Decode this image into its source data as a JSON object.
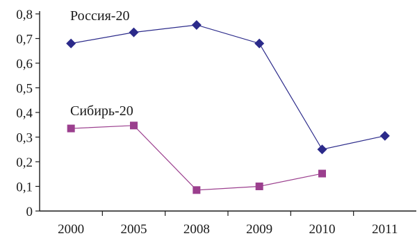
{
  "chart_data": {
    "type": "line",
    "categories": [
      "2000",
      "2005",
      "2008",
      "2009",
      "2010",
      "2011"
    ],
    "y_tick_labels": [
      "0",
      "0,1",
      "0,2",
      "0,3",
      "0,4",
      "0,5",
      "0,6",
      "0,7",
      "0,8"
    ],
    "ylim": [
      0,
      0.8
    ],
    "grid": false,
    "legend": "none",
    "series": [
      {
        "name": "Россия-20",
        "values": [
          0.68,
          0.725,
          0.755,
          0.68,
          0.25,
          0.305
        ],
        "color": "#2b2a8a",
        "marker": "diamond"
      },
      {
        "name": "Сибирь-20",
        "values": [
          0.335,
          0.347,
          0.085,
          0.1,
          0.152,
          null
        ],
        "color": "#9b3f8e",
        "marker": "square"
      }
    ]
  }
}
